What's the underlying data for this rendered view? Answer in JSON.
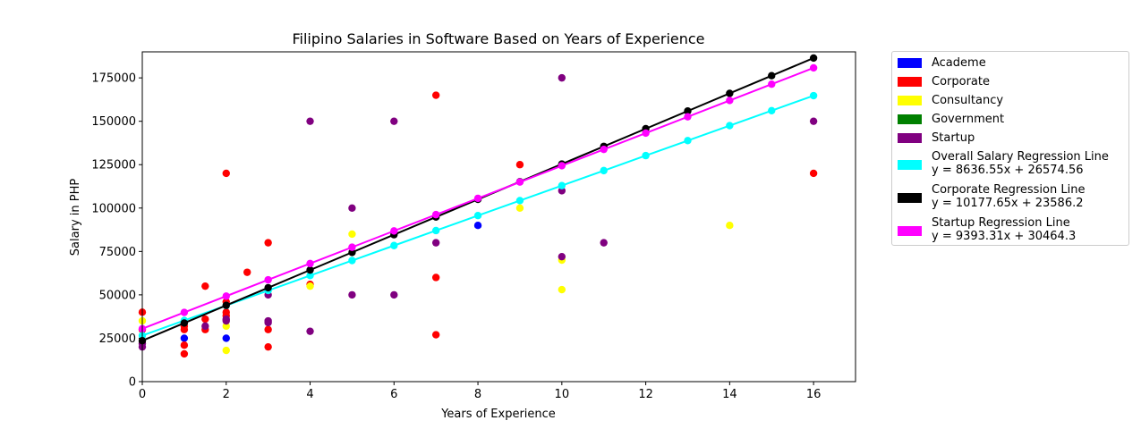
{
  "chart_data": {
    "type": "scatter",
    "title": "Filipino Salaries in Software Based on Years of Experience",
    "xlabel": "Years of Experience",
    "ylabel": "Salary in PHP",
    "xlim": [
      0,
      17
    ],
    "ylim": [
      0,
      190000
    ],
    "x_ticks": [
      0,
      2,
      4,
      6,
      8,
      10,
      12,
      14,
      16
    ],
    "y_ticks": [
      0,
      25000,
      50000,
      75000,
      100000,
      125000,
      150000,
      175000
    ],
    "x_tick_labels": [
      "0",
      "2",
      "4",
      "6",
      "8",
      "10",
      "12",
      "14",
      "16"
    ],
    "y_tick_labels": [
      "0",
      "25000",
      "50000",
      "75000",
      "100000",
      "125000",
      "150000",
      "175000"
    ],
    "grid": false,
    "legend_position": "outside-right",
    "series": [
      {
        "name": "Academe",
        "kind": "scatter",
        "color": "#0000ff",
        "points": [
          [
            1,
            25000
          ],
          [
            2,
            25000
          ],
          [
            8,
            90000
          ]
        ]
      },
      {
        "name": "Corporate",
        "kind": "scatter",
        "color": "#ff0000",
        "points": [
          [
            0,
            40000
          ],
          [
            0,
            30000
          ],
          [
            1,
            32000
          ],
          [
            1,
            30000
          ],
          [
            1,
            21000
          ],
          [
            1,
            16000
          ],
          [
            1.5,
            55000
          ],
          [
            1.5,
            36000
          ],
          [
            1.5,
            30000
          ],
          [
            2,
            120000
          ],
          [
            2,
            46000
          ],
          [
            2,
            40000
          ],
          [
            2,
            38000
          ],
          [
            2.5,
            63000
          ],
          [
            3,
            80000
          ],
          [
            3,
            30000
          ],
          [
            3,
            20000
          ],
          [
            4,
            56000
          ],
          [
            7,
            165000
          ],
          [
            7,
            60000
          ],
          [
            7,
            27000
          ],
          [
            9,
            125000
          ],
          [
            16,
            120000
          ]
        ]
      },
      {
        "name": "Consultancy",
        "kind": "scatter",
        "color": "#ffff00",
        "points": [
          [
            0,
            35000
          ],
          [
            2,
            32000
          ],
          [
            2,
            18000
          ],
          [
            4,
            55000
          ],
          [
            5,
            85000
          ],
          [
            9,
            100000
          ],
          [
            10,
            70000
          ],
          [
            10,
            53000
          ],
          [
            14,
            90000
          ]
        ]
      },
      {
        "name": "Government",
        "kind": "scatter",
        "color": "#008000",
        "points": []
      },
      {
        "name": "Startup",
        "kind": "scatter",
        "color": "#800080",
        "points": [
          [
            0,
            20000
          ],
          [
            0,
            22000
          ],
          [
            1.5,
            32000
          ],
          [
            2,
            35000
          ],
          [
            2,
            36000
          ],
          [
            3,
            50000
          ],
          [
            3,
            35000
          ],
          [
            3,
            34000
          ],
          [
            4,
            150000
          ],
          [
            4,
            29000
          ],
          [
            5,
            100000
          ],
          [
            5,
            50000
          ],
          [
            6,
            150000
          ],
          [
            6,
            50000
          ],
          [
            7,
            80000
          ],
          [
            10,
            175000
          ],
          [
            10,
            110000
          ],
          [
            10,
            72000
          ],
          [
            11,
            80000
          ],
          [
            16,
            150000
          ]
        ]
      },
      {
        "name": "Overall Salary Regression Line",
        "label2": "y = 8636.55x + 26574.56",
        "kind": "line",
        "color": "#00ffff",
        "slope": 8636.55,
        "intercept": 26574.56,
        "x": [
          0,
          1,
          2,
          3,
          4,
          5,
          6,
          7,
          8,
          9,
          10,
          11,
          12,
          13,
          14,
          15,
          16
        ]
      },
      {
        "name": "Corporate Regression Line",
        "label2": "y = 10177.65x + 23586.2",
        "kind": "line",
        "color": "#000000",
        "slope": 10177.65,
        "intercept": 23586.2,
        "x": [
          0,
          1,
          2,
          3,
          4,
          5,
          6,
          7,
          8,
          9,
          10,
          11,
          12,
          13,
          14,
          15,
          16
        ]
      },
      {
        "name": "Startup Regression Line",
        "label2": "y = 9393.31x + 30464.3",
        "kind": "line",
        "color": "#ff00ff",
        "slope": 9393.31,
        "intercept": 30464.3,
        "x": [
          0,
          1,
          2,
          3,
          4,
          5,
          6,
          7,
          8,
          9,
          10,
          11,
          12,
          13,
          14,
          15,
          16
        ]
      }
    ]
  }
}
